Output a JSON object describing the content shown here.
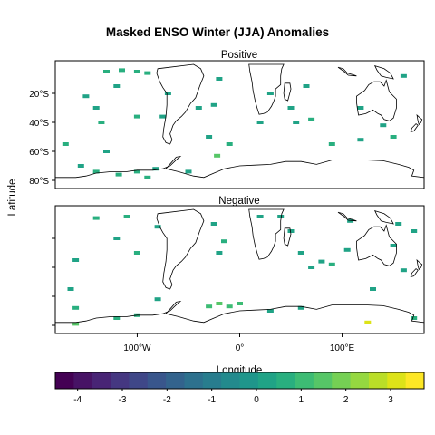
{
  "title": "Masked ENSO Winter (JJA) Anomalies",
  "axes": {
    "ylabel": "Latitude",
    "xlabel": "Longitude",
    "x_ticks": [
      {
        "label": "100°W",
        "value": -100
      },
      {
        "label": "0°",
        "value": 0
      },
      {
        "label": "100°E",
        "value": 100
      }
    ],
    "y_ticks": [
      {
        "label": "20°S",
        "value": -20
      },
      {
        "label": "40°S",
        "value": -40
      },
      {
        "label": "60°S",
        "value": -60
      },
      {
        "label": "80°S",
        "value": -80
      }
    ],
    "lon_range": [
      -180,
      180
    ],
    "lat_range": [
      -90,
      0
    ]
  },
  "panels": [
    {
      "label": "Positive",
      "show_y_tick_labels": true,
      "cells": [
        {
          "lon": -130,
          "lat": -5,
          "v": 0.6
        },
        {
          "lon": -115,
          "lat": -4,
          "v": 0.5
        },
        {
          "lon": -100,
          "lat": -5,
          "v": 0.7
        },
        {
          "lon": -90,
          "lat": -6,
          "v": 0.5
        },
        {
          "lon": -150,
          "lat": -22,
          "v": 0.4
        },
        {
          "lon": -140,
          "lat": -30,
          "v": 0.4
        },
        {
          "lon": -120,
          "lat": -15,
          "v": 0.3
        },
        {
          "lon": -135,
          "lat": -40,
          "v": 0.5
        },
        {
          "lon": -100,
          "lat": -36,
          "v": 0.6
        },
        {
          "lon": -70,
          "lat": -20,
          "v": 0.4
        },
        {
          "lon": -75,
          "lat": -36,
          "v": 0.4
        },
        {
          "lon": -20,
          "lat": -10,
          "v": 0.3
        },
        {
          "lon": -25,
          "lat": -28,
          "v": 0.4
        },
        {
          "lon": -30,
          "lat": -50,
          "v": 0.4
        },
        {
          "lon": -10,
          "lat": -55,
          "v": 0.5
        },
        {
          "lon": -22,
          "lat": -63,
          "v": 1.4
        },
        {
          "lon": 20,
          "lat": -40,
          "v": 0.4
        },
        {
          "lon": 30,
          "lat": -20,
          "v": 0.3
        },
        {
          "lon": 50,
          "lat": -30,
          "v": 0.3
        },
        {
          "lon": 55,
          "lat": -40,
          "v": 0.4
        },
        {
          "lon": 65,
          "lat": -15,
          "v": 0.4
        },
        {
          "lon": 70,
          "lat": -38,
          "v": 0.6
        },
        {
          "lon": 90,
          "lat": -55,
          "v": 0.5
        },
        {
          "lon": 118,
          "lat": -30,
          "v": 0.4
        },
        {
          "lon": 118,
          "lat": -52,
          "v": 0.4
        },
        {
          "lon": 160,
          "lat": -8,
          "v": 0.4
        },
        {
          "lon": 150,
          "lat": -50,
          "v": 0.5
        },
        {
          "lon": -155,
          "lat": -70,
          "v": 0.3
        },
        {
          "lon": -140,
          "lat": -74,
          "v": 0.5
        },
        {
          "lon": -118,
          "lat": -76,
          "v": 0.6
        },
        {
          "lon": -100,
          "lat": -74,
          "v": 0.6
        },
        {
          "lon": -82,
          "lat": -72,
          "v": 0.4
        },
        {
          "lon": -90,
          "lat": -78,
          "v": 0.5
        },
        {
          "lon": -50,
          "lat": -74,
          "v": 0.4
        },
        {
          "lon": -130,
          "lat": -60,
          "v": 0.4
        },
        {
          "lon": -170,
          "lat": -55,
          "v": 0.5
        },
        {
          "lon": -40,
          "lat": -30,
          "v": 0.3
        },
        {
          "lon": 140,
          "lat": -42,
          "v": 0.3
        }
      ]
    },
    {
      "label": "Negative",
      "show_y_tick_labels": false,
      "cells": [
        {
          "lon": -140,
          "lat": -6,
          "v": 0.6
        },
        {
          "lon": -110,
          "lat": -5,
          "v": 0.5
        },
        {
          "lon": -120,
          "lat": -20,
          "v": 0.4
        },
        {
          "lon": -160,
          "lat": -35,
          "v": 0.4
        },
        {
          "lon": -100,
          "lat": -30,
          "v": 0.5
        },
        {
          "lon": -80,
          "lat": -12,
          "v": 0.3
        },
        {
          "lon": -25,
          "lat": -10,
          "v": 0.4
        },
        {
          "lon": -15,
          "lat": -22,
          "v": 0.6
        },
        {
          "lon": -20,
          "lat": -30,
          "v": 0.3
        },
        {
          "lon": 20,
          "lat": -5,
          "v": 0.4
        },
        {
          "lon": 40,
          "lat": -5,
          "v": 0.3
        },
        {
          "lon": 50,
          "lat": -15,
          "v": 0.4
        },
        {
          "lon": 60,
          "lat": -30,
          "v": 0.4
        },
        {
          "lon": 70,
          "lat": -40,
          "v": 0.3
        },
        {
          "lon": 80,
          "lat": -36,
          "v": 0.4
        },
        {
          "lon": 90,
          "lat": -38,
          "v": 0.5
        },
        {
          "lon": 105,
          "lat": -28,
          "v": 0.4
        },
        {
          "lon": 108,
          "lat": -8,
          "v": 0.4
        },
        {
          "lon": 155,
          "lat": -10,
          "v": 0.3
        },
        {
          "lon": 150,
          "lat": -25,
          "v": 0.4
        },
        {
          "lon": 170,
          "lat": -15,
          "v": 0.4
        },
        {
          "lon": 160,
          "lat": -42,
          "v": 0.3
        },
        {
          "lon": 130,
          "lat": -55,
          "v": 0.3
        },
        {
          "lon": -165,
          "lat": -55,
          "v": 0.4
        },
        {
          "lon": -160,
          "lat": -68,
          "v": 0.5
        },
        {
          "lon": -80,
          "lat": -62,
          "v": 0.4
        },
        {
          "lon": -20,
          "lat": -65,
          "v": 1.4
        },
        {
          "lon": -10,
          "lat": -67,
          "v": 1.2
        },
        {
          "lon": -30,
          "lat": -67,
          "v": 0.9
        },
        {
          "lon": 0,
          "lat": -65,
          "v": 1.0
        },
        {
          "lon": -160,
          "lat": -79,
          "v": 1.5
        },
        {
          "lon": -120,
          "lat": -75,
          "v": 0.6
        },
        {
          "lon": -100,
          "lat": -73,
          "v": 0.5
        },
        {
          "lon": 30,
          "lat": -70,
          "v": 0.4
        },
        {
          "lon": 60,
          "lat": -68,
          "v": 0.3
        },
        {
          "lon": 125,
          "lat": -78,
          "v": 3.0
        },
        {
          "lon": 170,
          "lat": -75,
          "v": 0.6
        }
      ]
    }
  ],
  "colorbar": {
    "min": -4.5,
    "max": 3.75,
    "tick_values": [
      -4,
      -3,
      -2,
      -1,
      0,
      1,
      2,
      3
    ],
    "tick_labels": [
      "-4",
      "-3",
      "-2",
      "-1",
      "0",
      "1",
      "2",
      "3"
    ],
    "colors": [
      "#440154",
      "#471365",
      "#482475",
      "#453781",
      "#3f4788",
      "#39568c",
      "#33638d",
      "#2d718e",
      "#287d8e",
      "#238a8d",
      "#1f968b",
      "#20a386",
      "#29af7f",
      "#3dbc74",
      "#56c667",
      "#75d054",
      "#95d840",
      "#bade28",
      "#dde318",
      "#fde725"
    ]
  },
  "colors": {
    "coastline": "#000000",
    "panel_border": "#000000"
  }
}
